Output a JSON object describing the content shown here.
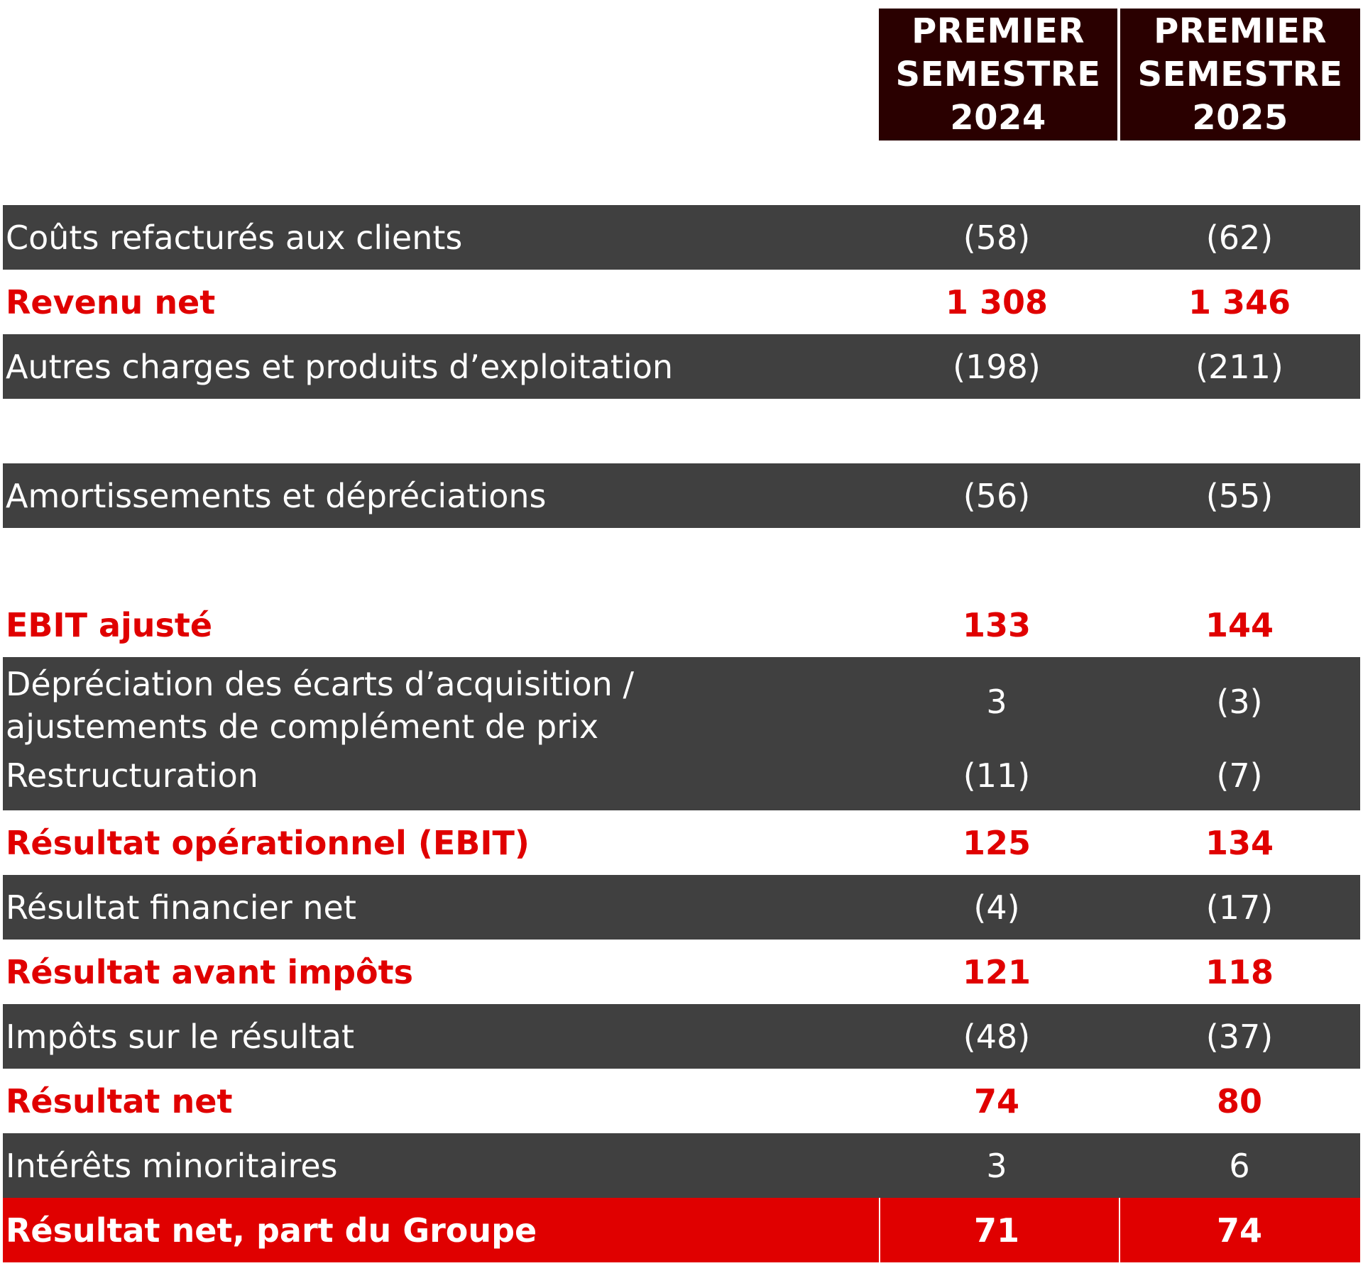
{
  "header": {
    "col1": [
      "PREMIER",
      "SEMESTRE",
      "2024"
    ],
    "col2": [
      "PREMIER",
      "SEMESTRE",
      "2025"
    ]
  },
  "rows": [
    {
      "label": "Coûts refacturés aux clients",
      "v2024": "(58)",
      "v2025": "(62)"
    },
    {
      "label": "Revenu net",
      "v2024": "1 308",
      "v2025": "1 346"
    },
    {
      "label": "Autres charges et produits d’exploitation",
      "v2024": "(198)",
      "v2025": "(211)"
    },
    {
      "label": "Amortissements et dépréciations",
      "v2024": "(56)",
      "v2025": "(55)"
    },
    {
      "label": "EBIT ajusté",
      "v2024": "133",
      "v2025": "144"
    },
    {
      "label_line1": "Dépréciation des écarts d’acquisition /",
      "label_line2": "ajustements de complément de prix",
      "v2024": "3",
      "v2025": "(3)"
    },
    {
      "label": "Restructuration",
      "v2024": "(11)",
      "v2025": "(7)"
    },
    {
      "label": "Résultat opérationnel (EBIT)",
      "v2024": "125",
      "v2025": "134"
    },
    {
      "label": "Résultat financier net",
      "v2024": "(4)",
      "v2025": "(17)"
    },
    {
      "label": "Résultat avant impôts",
      "v2024": "121",
      "v2025": "118"
    },
    {
      "label": "Impôts sur le résultat",
      "v2024": "(48)",
      "v2025": "(37)"
    },
    {
      "label": "Résultat net",
      "v2024": "74",
      "v2025": "80"
    },
    {
      "label": "Intérêts minoritaires",
      "v2024": "3",
      "v2025": "6"
    },
    {
      "label": "Résultat net, part du Groupe",
      "v2024": "71",
      "v2025": "74"
    }
  ],
  "colors": {
    "header_bg": "#2a0000",
    "dark_row_bg": "#404040",
    "highlight_red": "#e00000",
    "white": "#ffffff"
  }
}
